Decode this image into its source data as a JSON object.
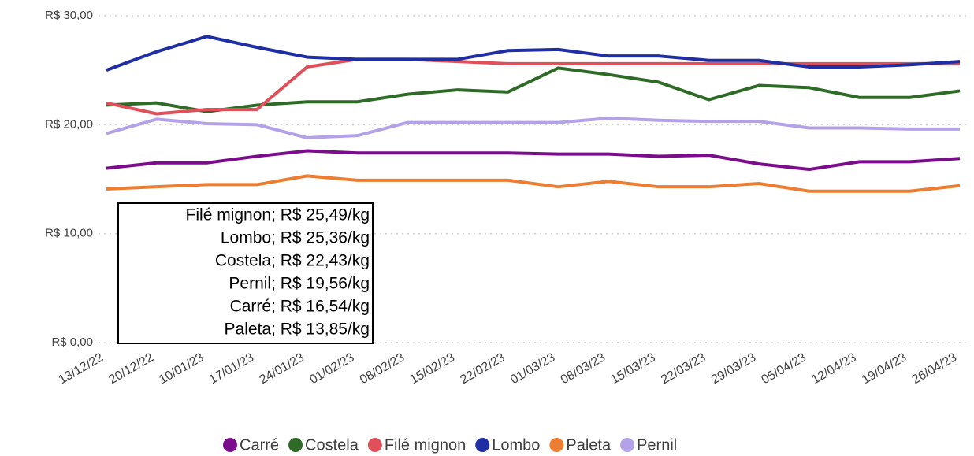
{
  "chart_data": {
    "type": "line",
    "categories": [
      "13/12/22",
      "20/12/22",
      "10/01/23",
      "17/01/23",
      "24/01/23",
      "01/02/23",
      "08/02/23",
      "15/02/23",
      "22/02/23",
      "01/03/23",
      "08/03/23",
      "15/03/23",
      "22/03/23",
      "29/03/23",
      "05/04/23",
      "12/04/23",
      "19/04/23",
      "26/04/23"
    ],
    "series": [
      {
        "name": "Carré",
        "color": "#7b0c8c",
        "values": [
          16.0,
          16.5,
          16.5,
          17.1,
          17.6,
          17.4,
          17.4,
          17.4,
          17.4,
          17.3,
          17.3,
          17.1,
          17.2,
          16.4,
          15.9,
          16.6,
          16.6,
          16.9
        ]
      },
      {
        "name": "Costela",
        "color": "#2e6b26",
        "values": [
          21.8,
          22.0,
          21.2,
          21.8,
          22.1,
          22.1,
          22.8,
          23.2,
          23.0,
          25.2,
          24.6,
          23.9,
          22.3,
          23.6,
          23.4,
          22.5,
          22.5,
          23.1
        ]
      },
      {
        "name": "Filé mignon",
        "color": "#e0505a",
        "values": [
          22.0,
          21.0,
          21.4,
          21.4,
          25.3,
          26.0,
          26.0,
          25.8,
          25.6,
          25.6,
          25.6,
          25.6,
          25.6,
          25.6,
          25.6,
          25.6,
          25.6,
          25.6
        ]
      },
      {
        "name": "Lombo",
        "color": "#1f2fa3",
        "values": [
          25.0,
          26.7,
          28.1,
          27.1,
          26.2,
          26.0,
          26.0,
          26.0,
          26.8,
          26.9,
          26.3,
          26.3,
          25.9,
          25.9,
          25.3,
          25.3,
          25.5,
          25.8
        ]
      },
      {
        "name": "Paleta",
        "color": "#ed7d31",
        "values": [
          14.1,
          14.3,
          14.5,
          14.5,
          15.3,
          14.9,
          14.9,
          14.9,
          14.9,
          14.3,
          14.8,
          14.3,
          14.3,
          14.6,
          13.9,
          13.9,
          13.9,
          14.4
        ]
      },
      {
        "name": "Pernil",
        "color": "#b3a2e8",
        "values": [
          19.2,
          20.5,
          20.1,
          20.0,
          18.8,
          19.0,
          20.2,
          20.2,
          20.2,
          20.2,
          20.6,
          20.4,
          20.3,
          20.3,
          19.7,
          19.7,
          19.6,
          19.6
        ]
      }
    ],
    "ylim": [
      0,
      30
    ],
    "yticks": [
      {
        "value": 0,
        "label": "R$ 0,00"
      },
      {
        "value": 10,
        "label": "R$ 10,00"
      },
      {
        "value": 20,
        "label": "R$ 20,00"
      },
      {
        "value": 30,
        "label": "R$ 30,00"
      }
    ],
    "grid": true,
    "legend": "bottom",
    "annotation": [
      "Filé mignon; R$ 25,49/kg",
      "Lombo; R$ 25,36/kg",
      "Costela; R$ 22,43/kg",
      "Pernil; R$ 19,56/kg",
      "Carré; R$ 16,54/kg",
      "Paleta; R$ 13,85/kg"
    ]
  }
}
